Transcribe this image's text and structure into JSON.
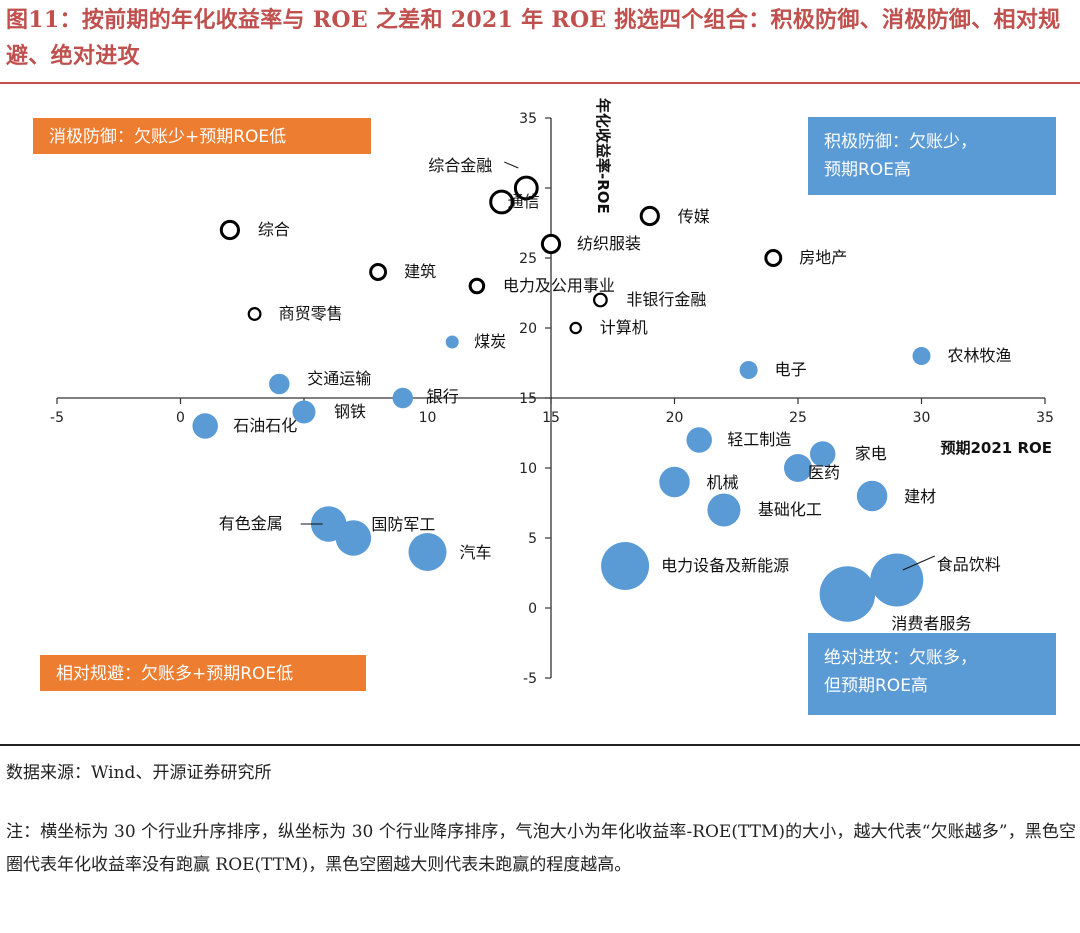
{
  "header": {
    "title": "图11：按前期的年化收益率与 ROE 之差和 2021 年 ROE 挑选四个组合：积极防御、消极防御、相对规避、绝对进攻"
  },
  "footer": {
    "source": "数据来源：Wind、开源证券研究所",
    "note": "注：横坐标为 30 个行业升序排序，纵坐标为 30 个行业降序排序，气泡大小为年化收益率-ROE(TTM)的大小，越大代表“欠账越多”，黑色空圈代表年化收益率没有跑赢 ROE(TTM)，黑色空圈越大则代表未跑赢的程度越高。"
  },
  "colors": {
    "title": "#C0504D",
    "bubble_fill": "#5B9BD5",
    "hollow_stroke": "#000000",
    "box_orange": "#ED7D31",
    "box_blue": "#5B9BD5"
  },
  "chart_data": {
    "type": "scatter",
    "subtype": "bubble",
    "xlabel": "预期2021 ROE",
    "ylabel": "年化收益率-ROE",
    "xlim": [
      -5,
      35
    ],
    "ylim": [
      -5,
      35
    ],
    "xticks": [
      -5,
      0,
      5,
      10,
      15,
      20,
      25,
      30,
      35
    ],
    "yticks": [
      -5,
      0,
      5,
      10,
      15,
      20,
      25,
      30,
      35
    ],
    "x_axis_crosses_y": 15,
    "y_axis_crosses_x": 15,
    "grid": false,
    "quadrant_labels": [
      {
        "text": "消极防御：欠账少+预期ROE低",
        "position": "top-left",
        "color": "orange"
      },
      {
        "text": "积极防御：欠账少，预期ROE高",
        "position": "top-right",
        "color": "blue"
      },
      {
        "text": "相对规避：欠账多+预期ROE低",
        "position": "bottom-left",
        "color": "orange"
      },
      {
        "text": "绝对进攻：欠账多，但预期ROE高",
        "position": "bottom-right",
        "color": "blue"
      }
    ],
    "points": [
      {
        "name": "综合金融",
        "x": 14,
        "y": 30,
        "size": 3,
        "style": "hollow"
      },
      {
        "name": "通信",
        "x": 13,
        "y": 29,
        "size": 3,
        "style": "hollow"
      },
      {
        "name": "综合",
        "x": 2,
        "y": 27,
        "size": 2,
        "style": "hollow"
      },
      {
        "name": "传媒",
        "x": 19,
        "y": 28,
        "size": 2,
        "style": "hollow"
      },
      {
        "name": "纺织服装",
        "x": 15,
        "y": 26,
        "size": 2,
        "style": "hollow"
      },
      {
        "name": "房地产",
        "x": 24,
        "y": 25,
        "size": 1.5,
        "style": "hollow"
      },
      {
        "name": "建筑",
        "x": 8,
        "y": 24,
        "size": 1.5,
        "style": "hollow"
      },
      {
        "name": "电力及公用事业",
        "x": 12,
        "y": 23,
        "size": 1.2,
        "style": "hollow"
      },
      {
        "name": "非银行金融",
        "x": 17,
        "y": 22,
        "size": 1,
        "style": "hollow"
      },
      {
        "name": "商贸零售",
        "x": 3,
        "y": 21,
        "size": 0.8,
        "style": "hollow"
      },
      {
        "name": "计算机",
        "x": 16,
        "y": 20,
        "size": 0.5,
        "style": "hollow"
      },
      {
        "name": "煤炭",
        "x": 11,
        "y": 19,
        "size": 1,
        "style": "filled"
      },
      {
        "name": "农林牧渔",
        "x": 30,
        "y": 18,
        "size": 2,
        "style": "filled"
      },
      {
        "name": "电子",
        "x": 23,
        "y": 17,
        "size": 2,
        "style": "filled"
      },
      {
        "name": "交通运输",
        "x": 4,
        "y": 16,
        "size": 2.5,
        "style": "filled"
      },
      {
        "name": "银行",
        "x": 9,
        "y": 15,
        "size": 2.5,
        "style": "filled"
      },
      {
        "name": "钢铁",
        "x": 5,
        "y": 14,
        "size": 3,
        "style": "filled"
      },
      {
        "name": "石油石化",
        "x": 1,
        "y": 13,
        "size": 3.5,
        "style": "filled"
      },
      {
        "name": "轻工制造",
        "x": 21,
        "y": 12,
        "size": 3.5,
        "style": "filled"
      },
      {
        "name": "家电",
        "x": 26,
        "y": 11,
        "size": 3.5,
        "style": "filled"
      },
      {
        "name": "医药",
        "x": 25,
        "y": 10,
        "size": 4,
        "style": "filled"
      },
      {
        "name": "机械",
        "x": 20,
        "y": 9,
        "size": 4.5,
        "style": "filled"
      },
      {
        "name": "建材",
        "x": 28,
        "y": 8,
        "size": 4.5,
        "style": "filled"
      },
      {
        "name": "基础化工",
        "x": 22,
        "y": 7,
        "size": 5,
        "style": "filled"
      },
      {
        "name": "有色金属",
        "x": 6,
        "y": 6,
        "size": 5.5,
        "style": "filled"
      },
      {
        "name": "国防军工",
        "x": 7,
        "y": 5,
        "size": 5.5,
        "style": "filled"
      },
      {
        "name": "汽车",
        "x": 10,
        "y": 4,
        "size": 6,
        "style": "filled"
      },
      {
        "name": "电力设备及新能源",
        "x": 18,
        "y": 3,
        "size": 8,
        "style": "filled"
      },
      {
        "name": "食品饮料",
        "x": 29,
        "y": 2,
        "size": 9,
        "style": "filled"
      },
      {
        "name": "消费者服务",
        "x": 27,
        "y": 1,
        "size": 9.5,
        "style": "filled"
      }
    ]
  }
}
